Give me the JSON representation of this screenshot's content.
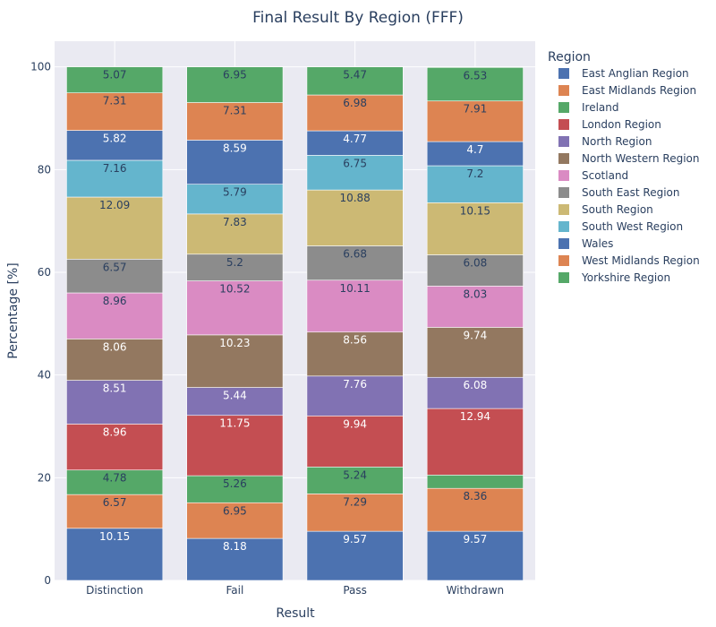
{
  "chart_data": {
    "type": "bar",
    "stacked": true,
    "title": "Final Result By Region (FFF)",
    "xlabel": "Result",
    "ylabel": "Percentage [%]",
    "ylim": [
      0,
      105
    ],
    "yticks": [
      0,
      20,
      40,
      60,
      80,
      100
    ],
    "grid": true,
    "legend_title": "Region",
    "legend_position": "right",
    "categories": [
      "Distinction",
      "Fail",
      "Pass",
      "Withdrawn"
    ],
    "series": [
      {
        "name": "East Anglian Region",
        "color": "#4c72b0",
        "values": [
          10.15,
          8.18,
          9.57,
          9.57
        ],
        "labels": [
          "10.15",
          "8.18",
          "9.57",
          "9.57"
        ]
      },
      {
        "name": "East Midlands Region",
        "color": "#dd8452",
        "values": [
          6.57,
          6.95,
          7.29,
          8.36
        ],
        "labels": [
          "6.57",
          "6.95",
          "7.29",
          "8.36"
        ]
      },
      {
        "name": "Ireland",
        "color": "#55a868",
        "values": [
          4.78,
          5.26,
          5.24,
          2.6
        ],
        "labels": [
          "4.78",
          "5.26",
          "5.24",
          ""
        ]
      },
      {
        "name": "London Region",
        "color": "#c44e52",
        "values": [
          8.96,
          11.75,
          9.94,
          12.94
        ],
        "labels": [
          "8.96",
          "11.75",
          "9.94",
          "12.94"
        ]
      },
      {
        "name": "North Region",
        "color": "#8172b3",
        "values": [
          8.51,
          5.44,
          7.76,
          6.08
        ],
        "labels": [
          "8.51",
          "5.44",
          "7.76",
          "6.08"
        ]
      },
      {
        "name": "North Western Region",
        "color": "#937860",
        "values": [
          8.06,
          10.23,
          8.56,
          9.74
        ],
        "labels": [
          "8.06",
          "10.23",
          "8.56",
          "9.74"
        ]
      },
      {
        "name": "Scotland",
        "color": "#da8bc3",
        "values": [
          8.96,
          10.52,
          10.11,
          8.03
        ],
        "labels": [
          "8.96",
          "10.52",
          "10.11",
          "8.03"
        ]
      },
      {
        "name": "South East Region",
        "color": "#8c8c8c",
        "values": [
          6.57,
          5.2,
          6.68,
          6.08
        ],
        "labels": [
          "6.57",
          "5.2",
          "6.68",
          "6.08"
        ]
      },
      {
        "name": "South Region",
        "color": "#ccb974",
        "values": [
          12.09,
          7.83,
          10.88,
          10.15
        ],
        "labels": [
          "12.09",
          "7.83",
          "10.88",
          "10.15"
        ]
      },
      {
        "name": "South West Region",
        "color": "#64b5cd",
        "values": [
          7.16,
          5.79,
          6.75,
          7.2
        ],
        "labels": [
          "7.16",
          "5.79",
          "6.75",
          "7.2"
        ]
      },
      {
        "name": "Wales",
        "color": "#4c72b0",
        "values": [
          5.82,
          8.59,
          4.77,
          4.7
        ],
        "labels": [
          "5.82",
          "8.59",
          "4.77",
          "4.7"
        ]
      },
      {
        "name": "West Midlands Region",
        "color": "#dd8452",
        "values": [
          7.31,
          7.31,
          6.98,
          7.91
        ],
        "labels": [
          "7.31",
          "7.31",
          "6.98",
          "7.91"
        ]
      },
      {
        "name": "Yorkshire Region",
        "color": "#55a868",
        "values": [
          5.07,
          6.95,
          5.47,
          6.53
        ],
        "labels": [
          "5.07",
          "6.95",
          "5.47",
          "6.53"
        ]
      }
    ]
  }
}
